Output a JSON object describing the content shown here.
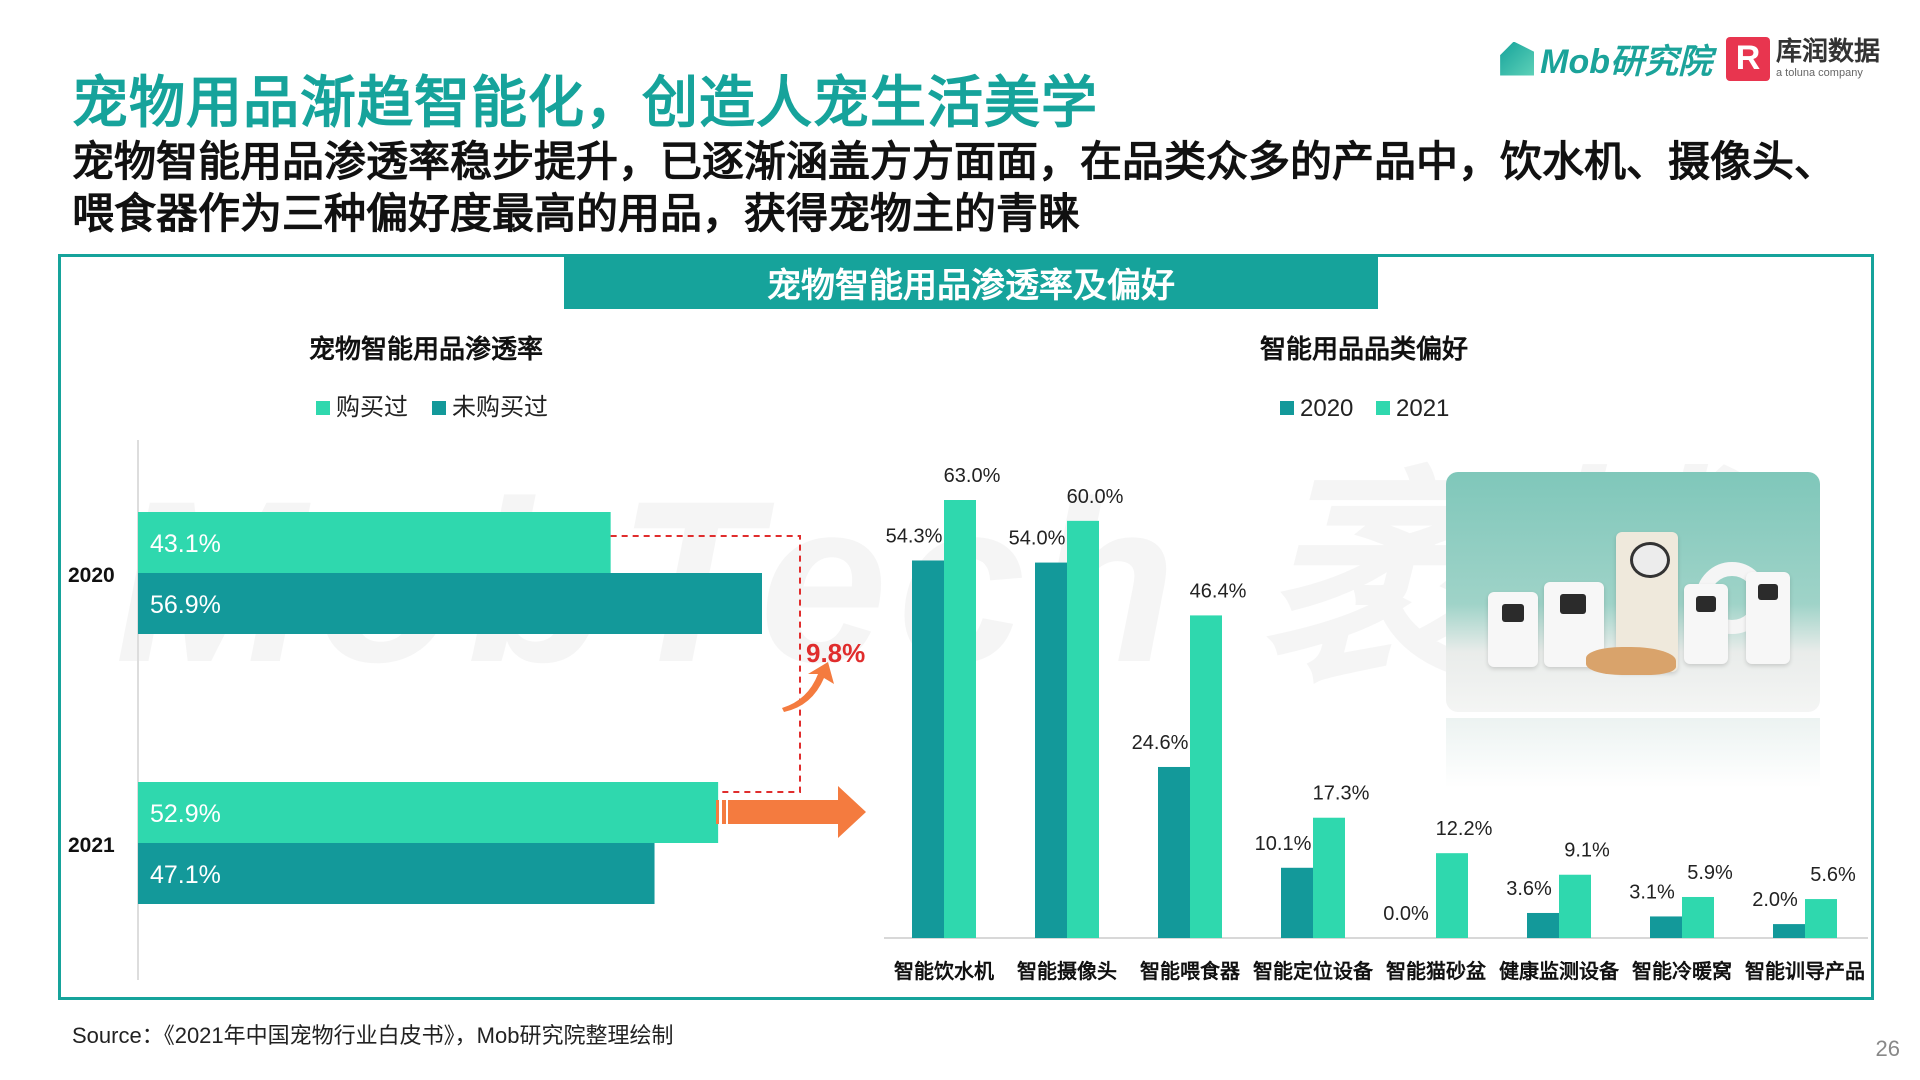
{
  "header": {
    "title": "宠物用品渐趋智能化，创造人宠生活美学",
    "subtitle": "宠物智能用品渗透率稳步提升，已逐渐涵盖方方面面，在品类众多的产品中，饮水机、摄像头、喂食器作为三种偏好度最高的用品，获得宠物主的青睐"
  },
  "logos": {
    "mob": "Mob研究院",
    "kr_mark": "R",
    "kr_name": "库润数据",
    "kr_sub": "a toluna company"
  },
  "banner": "宠物智能用品渗透率及偏好",
  "watermark": "MobTech 袤博",
  "source": "Source：《2021年中国宠物行业白皮书》，Mob研究院整理绘制",
  "page_number": "26",
  "colors": {
    "teal_dark": "#13999a",
    "teal_light": "#2fd8ae",
    "accent_red": "#e02d2d",
    "arrow_orange": "#f47b3f",
    "brand": "#16a39b"
  },
  "chart_data": [
    {
      "type": "bar",
      "orientation": "horizontal",
      "title": "宠物智能用品渗透率",
      "categories": [
        "2020",
        "2021"
      ],
      "series": [
        {
          "name": "购买过",
          "values": [
            43.1,
            52.9
          ],
          "color": "#2fd8ae"
        },
        {
          "name": "未购买过",
          "values": [
            56.9,
            47.1
          ],
          "color": "#13999a"
        }
      ],
      "value_labels": {
        "2020": [
          "43.1%",
          "56.9%"
        ],
        "2021": [
          "52.9%",
          "47.1%"
        ]
      },
      "xlim": [
        0,
        100
      ],
      "legend": "top",
      "annotation": "9.8%"
    },
    {
      "type": "bar",
      "title": "智能用品品类偏好",
      "categories": [
        "智能饮水机",
        "智能摄像头",
        "智能喂食器",
        "智能定位设备",
        "智能猫砂盆",
        "健康监测设备",
        "智能冷暖窝",
        "智能训导产品"
      ],
      "series": [
        {
          "name": "2020",
          "values": [
            54.3,
            54.0,
            24.6,
            10.1,
            0.0,
            3.6,
            3.1,
            2.0
          ],
          "color": "#13999a"
        },
        {
          "name": "2021",
          "values": [
            63.0,
            60.0,
            46.4,
            17.3,
            12.2,
            9.1,
            5.9,
            5.6
          ],
          "color": "#2fd8ae"
        }
      ],
      "ylim": [
        0,
        70
      ],
      "legend": "top"
    }
  ]
}
